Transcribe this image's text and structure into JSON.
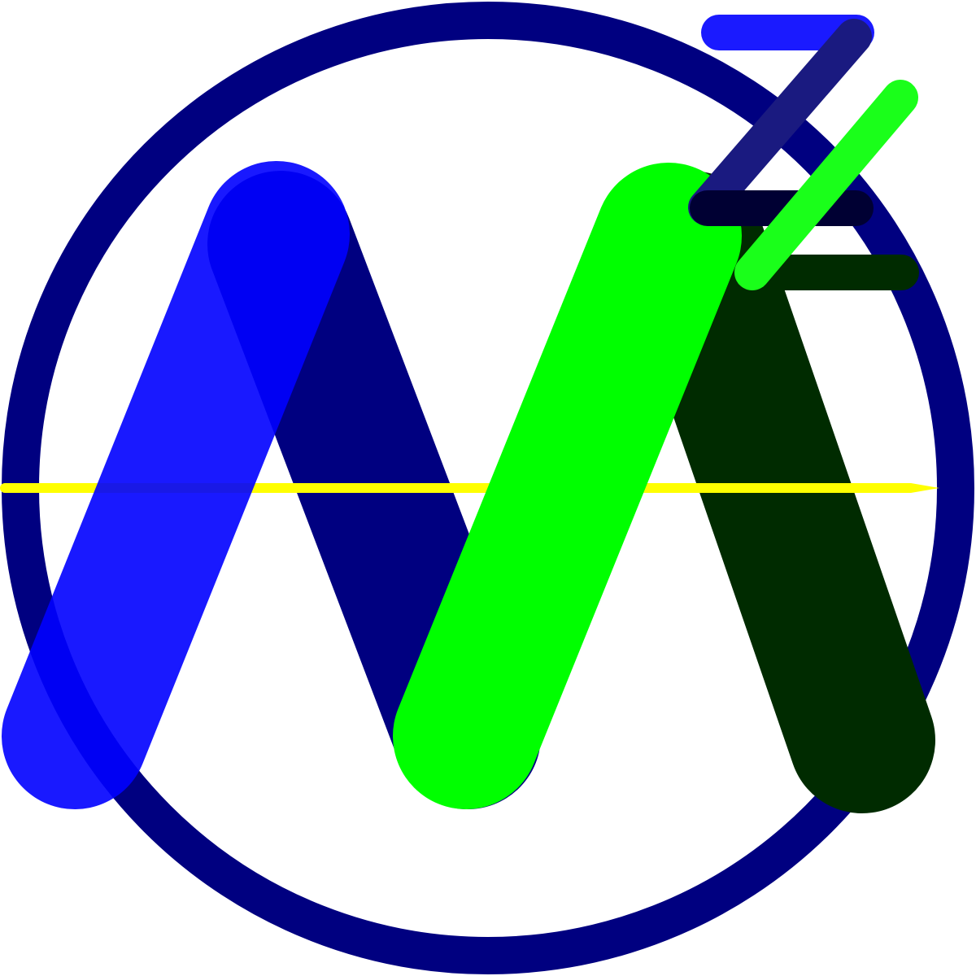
{
  "logo": {
    "icon": "mz-monogram-logo",
    "colors": {
      "background": "#ffffff",
      "ring": "#000080",
      "m_dark_stroke": "#000080",
      "m_blue_stroke": "#0000ff",
      "m_green_stroke": "#00ff00",
      "m_darkgreen_stroke": "#002b00",
      "needle": "#ffff00",
      "z_blue_bar": "#1a1aff",
      "z_dark_diagonal": "#1a1a80",
      "z_navy_bar": "#000033",
      "z_green_diagonal": "#1aff1a",
      "z_darkgreen_bar": "#002b00"
    }
  }
}
